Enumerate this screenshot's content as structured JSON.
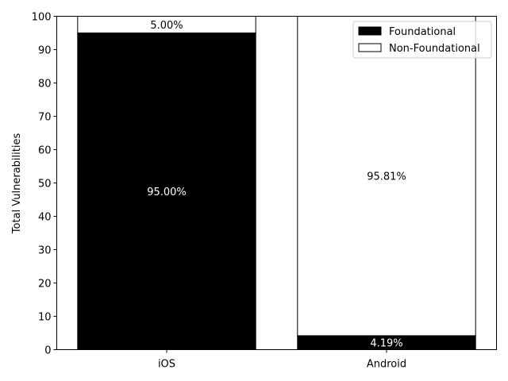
{
  "chart_data": {
    "type": "bar",
    "stacked": true,
    "categories": [
      "iOS",
      "Android"
    ],
    "series": [
      {
        "name": "Foundational",
        "values": [
          95.0,
          4.19
        ],
        "color": "#000000",
        "labels": [
          "95.00%",
          "4.19%"
        ],
        "label_color": "#ffffff"
      },
      {
        "name": "Non-Foundational",
        "values": [
          5.0,
          95.81
        ],
        "color": "#ffffff",
        "labels": [
          "5.00%",
          "95.81%"
        ],
        "label_color": "#000000"
      }
    ],
    "ylabel": "Total Vulnerabilities",
    "xlabel": "",
    "ylim": [
      0,
      100
    ],
    "yticks": [
      0,
      10,
      20,
      30,
      40,
      50,
      60,
      70,
      80,
      90,
      100
    ],
    "grid": false,
    "legend_position": "top-right"
  }
}
